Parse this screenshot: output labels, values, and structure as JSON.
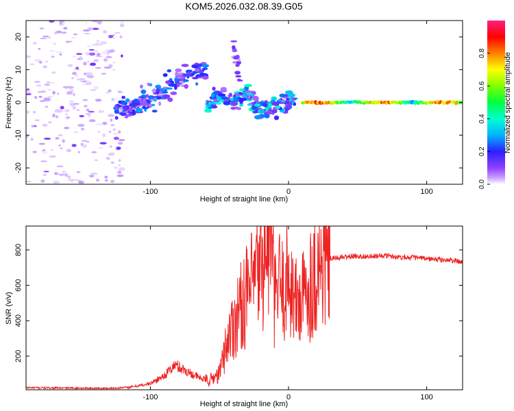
{
  "title": "KOM5.2026.032.08.39.G05",
  "chart_data": [
    {
      "type": "heatmap",
      "title": "KOM5.2026.032.08.39.G05",
      "xlabel": "Height of straight line (km)",
      "ylabel": "Frequency (Hz)",
      "xlim": [
        -190,
        126
      ],
      "ylim": [
        -25,
        25
      ],
      "xticks": [
        -100,
        0,
        100
      ],
      "yticks": [
        -20,
        -10,
        0,
        10,
        20
      ],
      "colorbar": {
        "label": "Normalized spectral amplitude",
        "range": [
          0,
          1
        ],
        "ticks": [
          0.0,
          0.2,
          0.4,
          0.6,
          0.8
        ],
        "tick_labels": [
          "0.0",
          "0.2",
          "0.4",
          "0.6",
          "0.8"
        ],
        "colors": [
          "#ffffff",
          "#c8a0ff",
          "#9040ff",
          "#2a20ff",
          "#00b4ff",
          "#00ffd0",
          "#00ff40",
          "#80ff00",
          "#ffff00",
          "#ff8000",
          "#ff0000",
          "#ff2080"
        ]
      },
      "features": [
        {
          "name": "noise cloud",
          "x_range": [
            -190,
            -120
          ],
          "y_range": [
            -25,
            25
          ],
          "amplitude": 0.1
        },
        {
          "name": "rising ridge",
          "points": [
            [
              -125,
              -2
            ],
            [
              -105,
              0
            ],
            [
              -95,
              2
            ],
            [
              -85,
              5
            ],
            [
              -75,
              8
            ],
            [
              -60,
              11
            ]
          ],
          "amplitude": 0.3
        },
        {
          "name": "upper branch",
          "points": [
            [
              -40,
              17
            ],
            [
              -38,
              12
            ],
            [
              -35,
              8
            ]
          ],
          "amplitude": 0.2
        },
        {
          "name": "mixed region",
          "points": [
            [
              -60,
              0
            ],
            [
              -50,
              2
            ],
            [
              -40,
              0
            ],
            [
              -30,
              2
            ],
            [
              -20,
              -2
            ],
            [
              -5,
              -1
            ],
            [
              5,
              1
            ]
          ],
          "amplitude": 0.4
        },
        {
          "name": "stable zero-frequency band",
          "x_range": [
            10,
            126
          ],
          "y": 0,
          "amplitude": 0.85
        }
      ]
    },
    {
      "type": "line",
      "xlabel": "Height of straight line (km)",
      "ylabel": "SNR (v/v)",
      "xlim": [
        -190,
        126
      ],
      "ylim": [
        10,
        935
      ],
      "xticks": [
        -100,
        0,
        100
      ],
      "yticks": [
        200,
        400,
        600,
        800
      ],
      "series": [
        {
          "name": "SNR",
          "color": "#ee2222",
          "x": [
            -190,
            -160,
            -130,
            -115,
            -100,
            -90,
            -82,
            -75,
            -65,
            -58,
            -50,
            -44,
            -38,
            -32,
            -28,
            -24,
            -20,
            -16,
            -13,
            -10,
            -7,
            -4,
            0,
            5,
            10,
            15,
            20,
            25,
            30,
            35,
            40,
            50,
            60,
            70,
            80,
            90,
            100,
            110,
            120,
            126
          ],
          "values": [
            22,
            20,
            18,
            24,
            45,
            90,
            150,
            120,
            80,
            60,
            100,
            300,
            420,
            520,
            560,
            640,
            700,
            780,
            900,
            500,
            620,
            560,
            660,
            500,
            520,
            600,
            680,
            720,
            750,
            755,
            760,
            765,
            762,
            768,
            760,
            758,
            750,
            745,
            740,
            730
          ]
        }
      ]
    }
  ]
}
